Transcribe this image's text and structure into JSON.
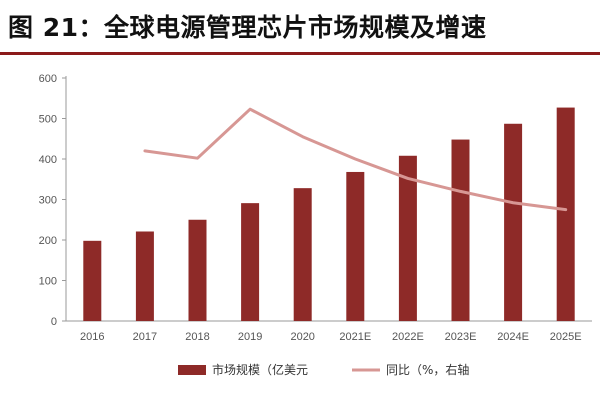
{
  "title": "图 21：全球电源管理芯片市场规模及增速",
  "colors": {
    "bar": "#8e2a28",
    "line": "#d79794",
    "title_rule": "#8b1a1a"
  },
  "chart_data": {
    "type": "bar",
    "categories": [
      "2016",
      "2017",
      "2018",
      "2019",
      "2020",
      "2021E",
      "2022E",
      "2023E",
      "2024E",
      "2025E"
    ],
    "series": [
      {
        "name": "市场规模（亿美元",
        "type": "bar",
        "axis": "left",
        "values": [
          198,
          221,
          250,
          291,
          328,
          368,
          408,
          448,
          487,
          527
        ]
      },
      {
        "name": "同比（%，右轴",
        "type": "line",
        "axis": "right",
        "values": [
          null,
          420,
          402,
          523,
          455,
          400,
          352,
          320,
          292,
          275
        ]
      }
    ],
    "y_ticks": [
      "0",
      "100",
      "200",
      "300",
      "400",
      "500",
      "600"
    ],
    "ylim": [
      0,
      600
    ],
    "grid": false,
    "legend": "bottom"
  }
}
